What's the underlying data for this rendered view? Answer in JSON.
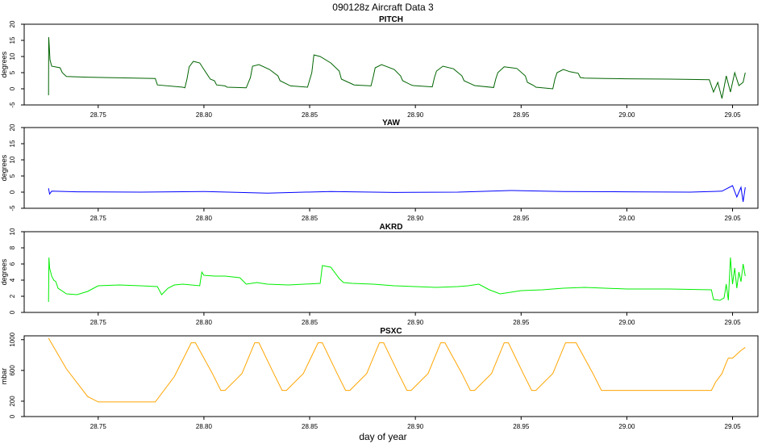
{
  "figure": {
    "title": "090128z   Aircraft Data 3",
    "xlabel": "day of year"
  },
  "chart_data": [
    {
      "type": "line",
      "title": "PITCH",
      "ylabel": "degrees",
      "color": "#006400",
      "xlim": [
        28.715,
        29.062
      ],
      "ylim": [
        -5,
        20
      ],
      "xticks": [
        28.75,
        28.8,
        28.85,
        28.9,
        28.95,
        29.0,
        29.05
      ],
      "xticklabels": [
        "28.75",
        "28.80",
        "28.85",
        "28.90",
        "28.95",
        "29.00",
        "29.05"
      ],
      "yticks": [
        -5,
        0,
        5,
        10,
        15,
        20
      ],
      "yticklabels": [
        "-5",
        "0",
        "5",
        "10",
        "15",
        "20"
      ],
      "series": [
        {
          "x": [
            28.7265,
            28.7266,
            28.7268,
            28.7272,
            28.728,
            28.732,
            28.733,
            28.735,
            28.745,
            28.76,
            28.777,
            28.778,
            28.79,
            28.791,
            28.792,
            28.793,
            28.795,
            28.798,
            28.8,
            28.803,
            28.805,
            28.806,
            28.81,
            28.811,
            28.82,
            28.822,
            28.823,
            28.826,
            28.831,
            28.835,
            28.836,
            28.84,
            28.841,
            28.849,
            28.851,
            28.852,
            28.855,
            28.86,
            28.864,
            28.865,
            28.87,
            28.871,
            28.879,
            28.88,
            28.881,
            28.884,
            28.89,
            28.893,
            28.894,
            28.898,
            28.899,
            28.908,
            28.909,
            28.91,
            28.913,
            28.918,
            28.922,
            28.923,
            28.927,
            28.928,
            28.937,
            28.938,
            28.939,
            28.942,
            28.948,
            28.952,
            28.953,
            28.956,
            28.957,
            28.965,
            28.966,
            28.967,
            28.97,
            28.973,
            28.977,
            28.978,
            28.98,
            28.99,
            29.0,
            29.02,
            29.03,
            29.039,
            29.041,
            29.043,
            29.045,
            29.047,
            29.049,
            29.051,
            29.053,
            29.055,
            29.056
          ],
          "y": [
            -2,
            16,
            14,
            9,
            7,
            6.5,
            5,
            3.8,
            3.6,
            3.4,
            3.2,
            1.2,
            0.5,
            0.3,
            3,
            6.8,
            8.5,
            8,
            6,
            3,
            2.5,
            1.2,
            0.9,
            0.5,
            0.3,
            3.5,
            7,
            7.5,
            6,
            4,
            2.5,
            1.2,
            0.9,
            0.5,
            5,
            10.5,
            10,
            8,
            5.5,
            3,
            1.5,
            1.2,
            0.9,
            3.5,
            6.5,
            7.5,
            6,
            4,
            2.5,
            1.2,
            1.0,
            0.6,
            3.5,
            5.5,
            7.0,
            6.2,
            4,
            2.5,
            1.3,
            1.0,
            0.4,
            3,
            5,
            6.8,
            6.3,
            4,
            2,
            1,
            0.5,
            0,
            3,
            5,
            6,
            5.3,
            4.8,
            3.5,
            3.3,
            3.2,
            3.1,
            3.0,
            2.9,
            2.8,
            -1,
            2,
            -3,
            4,
            -1,
            5,
            1,
            2,
            5
          ]
        }
      ]
    },
    {
      "type": "line",
      "title": "YAW",
      "ylabel": "degrees",
      "color": "#0000ff",
      "xlim": [
        28.715,
        29.062
      ],
      "ylim": [
        -5,
        20
      ],
      "xticks": [
        28.75,
        28.8,
        28.85,
        28.9,
        28.95,
        29.0,
        29.05
      ],
      "xticklabels": [
        "28.75",
        "28.80",
        "28.85",
        "28.90",
        "28.95",
        "29.00",
        "29.05"
      ],
      "yticks": [
        -5,
        0,
        5,
        10,
        15,
        20
      ],
      "yticklabels": [
        "-5",
        "0",
        "5",
        "10",
        "15",
        "20"
      ],
      "series": [
        {
          "x": [
            28.7265,
            28.727,
            28.728,
            28.74,
            28.77,
            28.8,
            28.83,
            28.86,
            28.89,
            28.92,
            28.945,
            28.97,
            29.0,
            29.03,
            29.045,
            29.05,
            29.052,
            29.054,
            29.055,
            29.056
          ],
          "y": [
            1.2,
            -0.6,
            0.3,
            0.1,
            0,
            0.2,
            -0.3,
            0.2,
            -0.1,
            0,
            0.5,
            0.2,
            0.1,
            0,
            0.3,
            2,
            -1.5,
            1.5,
            -3,
            1.5
          ]
        }
      ]
    },
    {
      "type": "line",
      "title": "AKRD",
      "ylabel": "degrees",
      "color": "#00ee00",
      "xlim": [
        28.715,
        29.062
      ],
      "ylim": [
        0,
        10
      ],
      "xticks": [
        28.75,
        28.8,
        28.85,
        28.9,
        28.95,
        29.0,
        29.05
      ],
      "xticklabels": [
        "28.75",
        "28.80",
        "28.85",
        "28.90",
        "28.95",
        "29.00",
        "29.05"
      ],
      "yticks": [
        0,
        2,
        4,
        6,
        8,
        10
      ],
      "yticklabels": [
        "0",
        "2",
        "4",
        "6",
        "8",
        "10"
      ],
      "series": [
        {
          "x": [
            28.7265,
            28.7267,
            28.727,
            28.728,
            28.729,
            28.73,
            28.731,
            28.735,
            28.74,
            28.745,
            28.75,
            28.76,
            28.77,
            28.778,
            28.78,
            28.783,
            28.786,
            28.79,
            28.798,
            28.799,
            28.8,
            28.805,
            28.81,
            28.817,
            28.82,
            28.825,
            28.83,
            28.84,
            28.855,
            28.856,
            28.86,
            28.864,
            28.866,
            28.87,
            28.88,
            28.89,
            28.9,
            28.91,
            28.92,
            28.925,
            28.93,
            28.935,
            28.94,
            28.95,
            28.96,
            28.97,
            28.98,
            29.0,
            29.02,
            29.04,
            29.041,
            29.044,
            29.046,
            29.047,
            29.048,
            29.049,
            29.05,
            29.051,
            29.052,
            29.053,
            29.054,
            29.055,
            29.056
          ],
          "y": [
            1.3,
            6.8,
            5.5,
            4.5,
            4.0,
            3.8,
            3.0,
            2.3,
            2.2,
            2.6,
            3.3,
            3.4,
            3.3,
            3.2,
            2.2,
            3.0,
            3.4,
            3.5,
            3.3,
            5.0,
            4.6,
            4.5,
            4.5,
            4.3,
            3.5,
            3.7,
            3.5,
            3.4,
            3.6,
            5.8,
            5.6,
            4.2,
            3.7,
            3.6,
            3.5,
            3.3,
            3.2,
            3.1,
            3.2,
            3.3,
            3.5,
            2.8,
            2.3,
            2.7,
            2.8,
            3.0,
            3.1,
            2.9,
            2.9,
            2.8,
            1.6,
            1.5,
            1.8,
            3.5,
            1.5,
            6.8,
            3.5,
            5.5,
            3,
            5,
            3.8,
            6,
            4.5
          ]
        }
      ]
    },
    {
      "type": "line",
      "title": "PSXC",
      "ylabel": "mbar",
      "color": "#ffa500",
      "xlim": [
        28.715,
        29.062
      ],
      "ylim": [
        0,
        1050
      ],
      "xticks": [
        28.75,
        28.8,
        28.85,
        28.9,
        28.95,
        29.0,
        29.05
      ],
      "xticklabels": [
        "28.75",
        "28.80",
        "28.85",
        "28.90",
        "28.95",
        "29.00",
        "29.05"
      ],
      "yticks": [
        0,
        200,
        600,
        1000
      ],
      "yticklabels": [
        "0",
        "200",
        "600",
        "1000"
      ],
      "series": [
        {
          "x": [
            28.7265,
            28.735,
            28.745,
            28.75,
            28.777,
            28.786,
            28.794,
            28.796,
            28.804,
            28.808,
            28.81,
            28.818,
            28.824,
            28.826,
            28.833,
            28.837,
            28.839,
            28.847,
            28.854,
            28.856,
            28.863,
            28.867,
            28.869,
            28.877,
            28.883,
            28.885,
            28.892,
            28.896,
            28.898,
            28.906,
            28.912,
            28.914,
            28.922,
            28.926,
            28.928,
            28.936,
            28.942,
            28.944,
            28.951,
            28.955,
            28.957,
            28.965,
            28.971,
            28.976,
            28.984,
            28.988,
            29.0,
            29.02,
            29.04,
            29.042,
            29.045,
            29.047,
            29.048,
            29.05,
            29.052,
            29.054,
            29.056
          ],
          "y": [
            1020,
            620,
            260,
            190,
            190,
            520,
            960,
            960,
            560,
            340,
            340,
            560,
            960,
            960,
            560,
            340,
            340,
            560,
            960,
            960,
            560,
            340,
            340,
            560,
            960,
            960,
            560,
            340,
            340,
            560,
            960,
            960,
            560,
            340,
            340,
            560,
            960,
            960,
            560,
            340,
            340,
            560,
            960,
            960,
            560,
            340,
            340,
            340,
            340,
            450,
            560,
            700,
            760,
            760,
            810,
            860,
            900
          ]
        }
      ]
    }
  ]
}
